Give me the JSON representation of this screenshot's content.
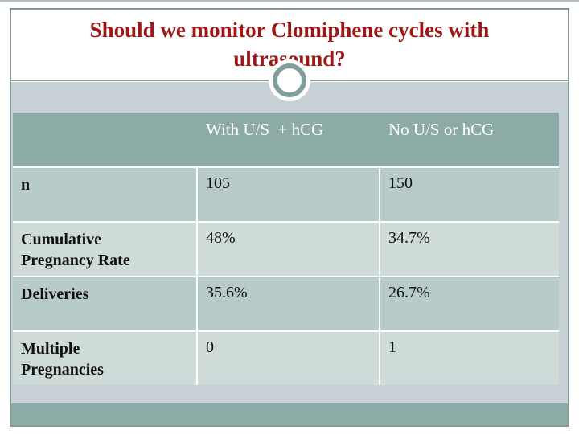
{
  "slide": {
    "title": "Should we monitor Clomiphene cycles with ultrasound?"
  },
  "table": {
    "header": {
      "row_label_col": "",
      "with_us_col": "With U/S  + hCG",
      "no_us_col": "No U/S or hCG"
    },
    "rows": [
      {
        "label": "n",
        "with_us": "105",
        "no_us": "150"
      },
      {
        "label": "Cumulative Pregnancy Rate",
        "with_us": "48%",
        "no_us": "34.7%"
      },
      {
        "label": "Deliveries",
        "with_us": "35.6%",
        "no_us": "26.7%"
      },
      {
        "label": "Multiple Pregnancies",
        "with_us": "0",
        "no_us": "1"
      }
    ]
  },
  "colors": {
    "title_text": "#9e1717",
    "frame_border": "#8a979a",
    "content_background": "#c8d2d6",
    "table_header_background": "#8caba7",
    "row_dark": "#b9cbc8",
    "row_light": "#cfdbd8",
    "header_text": "#ffffff",
    "footer_bar": "#8caba7",
    "ornament_ring": "#7f9e9a"
  }
}
